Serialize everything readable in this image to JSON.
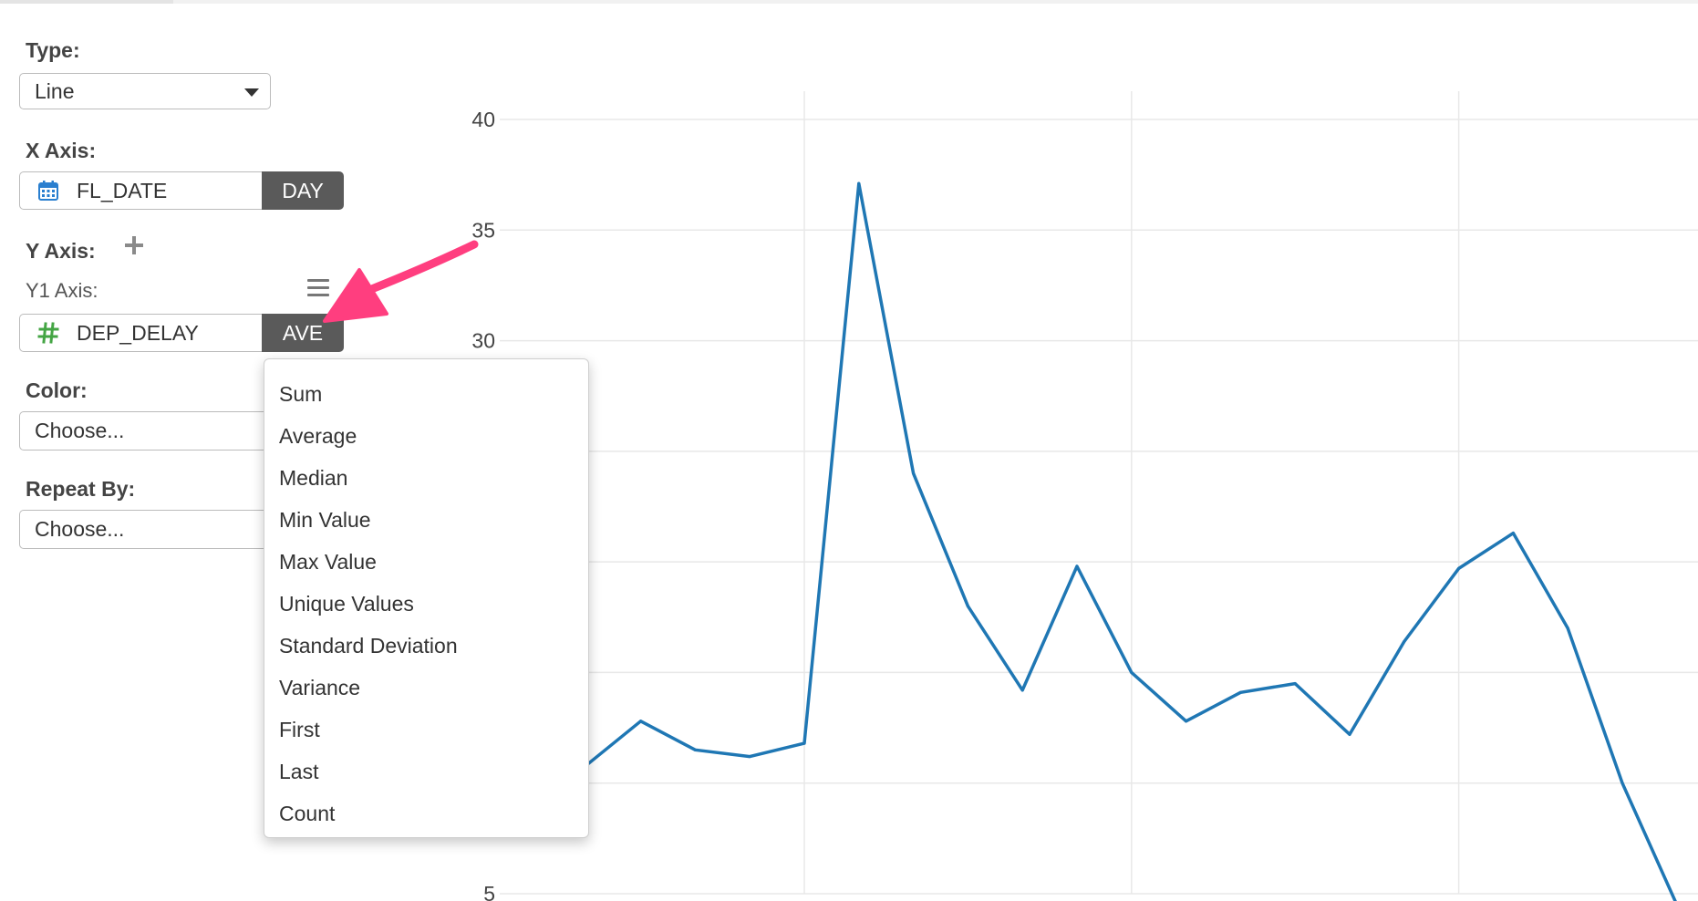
{
  "panel": {
    "type_label": "Type:",
    "type_value": "Line",
    "xaxis_label": "X Axis:",
    "xaxis_field": "FL_DATE",
    "xaxis_agg": "DAY",
    "yaxis_label": "Y Axis:",
    "y1_label": "Y1 Axis:",
    "y1_field": "DEP_DELAY",
    "y1_agg": "AVE",
    "color_label": "Color:",
    "color_placeholder": "Choose...",
    "repeat_label": "Repeat By:",
    "repeat_placeholder": "Choose..."
  },
  "icons": {
    "xaxis_field": "calendar-icon",
    "y1_field": "hash-icon",
    "add_y": "plus-icon",
    "y1_menu": "hamburger-menu-icon",
    "callout": "pink-arrow-icon"
  },
  "colors": {
    "line": "#1f77b4",
    "calendar": "#2a7fcf",
    "hash": "#44a544",
    "agg_button": "#5a5a5a",
    "arrow": "#ff3e7f"
  },
  "dropdown": {
    "items": [
      "Sum",
      "Average",
      "Median",
      "Min Value",
      "Max Value",
      "Unique Values",
      "Standard Deviation",
      "Variance",
      "First",
      "Last",
      "Count"
    ]
  },
  "chart_data": {
    "type": "line",
    "title": "",
    "xlabel": "",
    "ylabel": "",
    "ylim": [
      5,
      40
    ],
    "yticks_visible": [
      40,
      35,
      30,
      5
    ],
    "grid": true,
    "series": [
      {
        "values": [
          13.6,
          10.8,
          12.8,
          11.5,
          11.2,
          11.8,
          37.1,
          24.0,
          18.0,
          14.2,
          19.8,
          15.0,
          12.8,
          14.1,
          14.5,
          12.2,
          16.4,
          19.7,
          21.3,
          17.0,
          10.0,
          4.5
        ]
      }
    ]
  }
}
